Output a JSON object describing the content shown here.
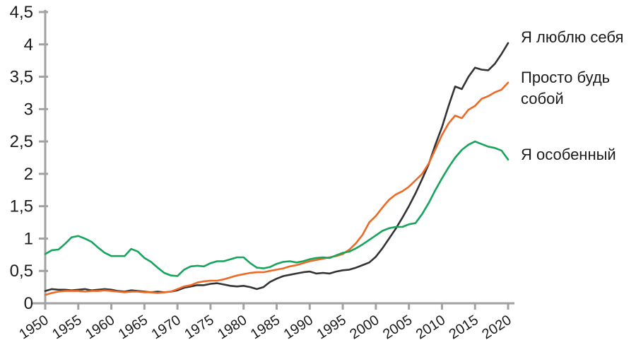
{
  "chart_data": {
    "type": "line",
    "title": "",
    "xlabel": "",
    "ylabel": "",
    "xlim": [
      1950,
      2020
    ],
    "ylim": [
      0,
      4.5
    ],
    "grid": false,
    "legend_position": "right-outside",
    "axis_color": "#a2a2a2",
    "text_color": "#1b1b1b",
    "x_ticks": [
      {
        "v": 1950,
        "label": "1950"
      },
      {
        "v": 1955,
        "label": "1955"
      },
      {
        "v": 1960,
        "label": "1960"
      },
      {
        "v": 1965,
        "label": "1965"
      },
      {
        "v": 1970,
        "label": "1970"
      },
      {
        "v": 1975,
        "label": "1975"
      },
      {
        "v": 1980,
        "label": "1980"
      },
      {
        "v": 1985,
        "label": "1985"
      },
      {
        "v": 1990,
        "label": "1990"
      },
      {
        "v": 1995,
        "label": "1995"
      },
      {
        "v": 2000,
        "label": "2000"
      },
      {
        "v": 2005,
        "label": "2005"
      },
      {
        "v": 2010,
        "label": "2010"
      },
      {
        "v": 2015,
        "label": "2015"
      },
      {
        "v": 2020,
        "label": "2020"
      }
    ],
    "y_ticks": [
      {
        "v": 0,
        "label": "0"
      },
      {
        "v": 0.5,
        "label": "0,5"
      },
      {
        "v": 1,
        "label": "1"
      },
      {
        "v": 1.5,
        "label": "1,5"
      },
      {
        "v": 2,
        "label": "2"
      },
      {
        "v": 2.5,
        "label": "2,5"
      },
      {
        "v": 3,
        "label": "3"
      },
      {
        "v": 3.5,
        "label": "3,5"
      },
      {
        "v": 4,
        "label": "4"
      },
      {
        "v": 4.5,
        "label": "4,5"
      }
    ],
    "years": [
      1950,
      1951,
      1952,
      1953,
      1954,
      1955,
      1956,
      1957,
      1958,
      1959,
      1960,
      1961,
      1962,
      1963,
      1964,
      1965,
      1966,
      1967,
      1968,
      1969,
      1970,
      1971,
      1972,
      1973,
      1974,
      1975,
      1976,
      1977,
      1978,
      1979,
      1980,
      1981,
      1982,
      1983,
      1984,
      1985,
      1986,
      1987,
      1988,
      1989,
      1990,
      1991,
      1992,
      1993,
      1994,
      1995,
      1996,
      1997,
      1998,
      1999,
      2000,
      2001,
      2002,
      2003,
      2004,
      2005,
      2006,
      2007,
      2008,
      2009,
      2010,
      2011,
      2012,
      2013,
      2014,
      2015,
      2016,
      2017,
      2018,
      2019,
      2020
    ],
    "series": [
      {
        "name": "Я люблю себя",
        "color": "#333333",
        "values": [
          0.19,
          0.22,
          0.21,
          0.21,
          0.2,
          0.21,
          0.22,
          0.2,
          0.21,
          0.22,
          0.21,
          0.19,
          0.18,
          0.2,
          0.19,
          0.18,
          0.17,
          0.18,
          0.17,
          0.18,
          0.2,
          0.24,
          0.26,
          0.28,
          0.28,
          0.3,
          0.31,
          0.29,
          0.27,
          0.26,
          0.27,
          0.25,
          0.22,
          0.25,
          0.33,
          0.38,
          0.42,
          0.44,
          0.46,
          0.48,
          0.49,
          0.46,
          0.47,
          0.46,
          0.49,
          0.51,
          0.52,
          0.55,
          0.59,
          0.63,
          0.72,
          0.85,
          1.0,
          1.15,
          1.32,
          1.5,
          1.7,
          1.92,
          2.15,
          2.45,
          2.72,
          3.05,
          3.35,
          3.31,
          3.5,
          3.64,
          3.61,
          3.6,
          3.7,
          3.85,
          4.02
        ]
      },
      {
        "name": "Просто будь собой",
        "color": "#ee6a24",
        "values": [
          0.13,
          0.16,
          0.18,
          0.19,
          0.19,
          0.19,
          0.18,
          0.19,
          0.19,
          0.2,
          0.19,
          0.18,
          0.17,
          0.18,
          0.18,
          0.17,
          0.17,
          0.16,
          0.17,
          0.18,
          0.22,
          0.26,
          0.28,
          0.32,
          0.34,
          0.35,
          0.35,
          0.37,
          0.4,
          0.43,
          0.45,
          0.47,
          0.48,
          0.48,
          0.5,
          0.52,
          0.54,
          0.57,
          0.59,
          0.62,
          0.65,
          0.67,
          0.69,
          0.71,
          0.73,
          0.76,
          0.83,
          0.93,
          1.06,
          1.25,
          1.35,
          1.48,
          1.6,
          1.68,
          1.73,
          1.8,
          1.9,
          2.0,
          2.16,
          2.38,
          2.6,
          2.78,
          2.9,
          2.86,
          2.99,
          3.05,
          3.16,
          3.2,
          3.26,
          3.3,
          3.41
        ]
      },
      {
        "name": "Я особенный",
        "color": "#17a45c",
        "values": [
          0.76,
          0.82,
          0.83,
          0.92,
          1.02,
          1.04,
          1.0,
          0.95,
          0.86,
          0.78,
          0.73,
          0.73,
          0.73,
          0.84,
          0.8,
          0.7,
          0.64,
          0.55,
          0.47,
          0.43,
          0.42,
          0.52,
          0.57,
          0.58,
          0.57,
          0.62,
          0.65,
          0.65,
          0.68,
          0.71,
          0.71,
          0.62,
          0.55,
          0.54,
          0.56,
          0.61,
          0.64,
          0.65,
          0.63,
          0.65,
          0.68,
          0.7,
          0.71,
          0.7,
          0.74,
          0.78,
          0.8,
          0.85,
          0.91,
          0.98,
          1.05,
          1.12,
          1.16,
          1.18,
          1.18,
          1.22,
          1.24,
          1.38,
          1.55,
          1.75,
          1.93,
          2.1,
          2.25,
          2.37,
          2.45,
          2.5,
          2.46,
          2.42,
          2.4,
          2.36,
          2.22
        ]
      }
    ]
  }
}
